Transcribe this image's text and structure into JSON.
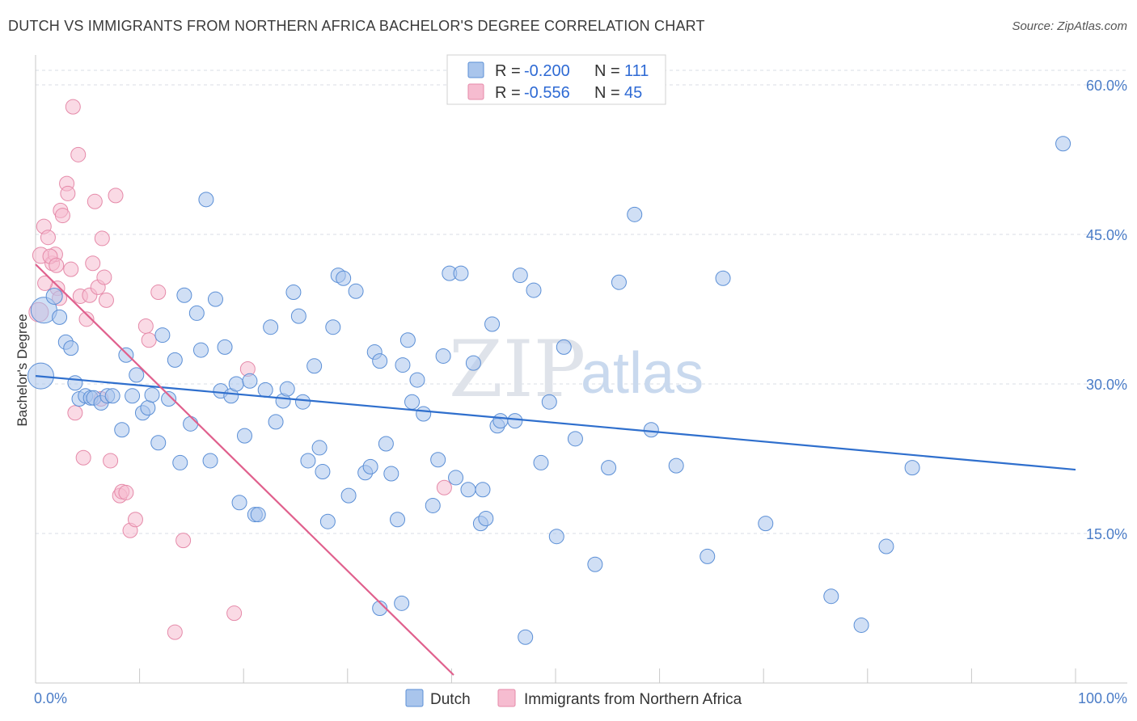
{
  "header": {
    "title": "DUTCH VS IMMIGRANTS FROM NORTHERN AFRICA BACHELOR'S DEGREE CORRELATION CHART",
    "source": "Source: ZipAtlas.com"
  },
  "watermark": {
    "zip": "ZIP",
    "atlas": "atlas"
  },
  "legend_box": {
    "rows": [
      {
        "r_label": "R =",
        "r_value": "-0.200",
        "n_label": "N =",
        "n_value": "111"
      },
      {
        "r_label": "R =",
        "r_value": "-0.556",
        "n_label": "N =",
        "n_value": "45"
      }
    ]
  },
  "bottom_legend": {
    "dutch": "Dutch",
    "immigrants": "Immigrants from Northern Africa"
  },
  "colors": {
    "dutch_fill": "#a9c5ec",
    "dutch_stroke": "#5b8fd6",
    "dutch_line": "#2f6fcd",
    "imm_fill": "#f6bcd0",
    "imm_stroke": "#e58aa9",
    "imm_line": "#e0608d",
    "grid": "#d8dde5",
    "axis_text": "#4a7cc7"
  },
  "chart_data": {
    "type": "scatter",
    "title": "DUTCH VS IMMIGRANTS FROM NORTHERN AFRICA BACHELOR'S DEGREE CORRELATION CHART",
    "xlabel": "",
    "ylabel": "Bachelor's Degree",
    "xlim": [
      0,
      100
    ],
    "ylim": [
      0,
      63
    ],
    "x_tick_labels": [
      "0.0%",
      "100.0%"
    ],
    "y_ticks": [
      15,
      30,
      45,
      60
    ],
    "y_tick_labels": [
      "15.0%",
      "30.0%",
      "45.0%",
      "60.0%"
    ],
    "grid": true,
    "legend": "top-center",
    "series": [
      {
        "name": "Dutch",
        "r": -0.2,
        "n": 111,
        "trend": {
          "x": [
            0,
            100
          ],
          "y": [
            30.8,
            21.4
          ]
        },
        "points": [
          [
            0.5,
            30.8,
            16
          ],
          [
            0.8,
            37.4,
            16
          ],
          [
            1.8,
            38.8,
            10
          ],
          [
            2.3,
            36.7,
            9
          ],
          [
            2.9,
            34.2,
            9
          ],
          [
            3.4,
            33.6,
            9
          ],
          [
            3.8,
            30.1,
            9
          ],
          [
            4.2,
            28.5,
            9
          ],
          [
            4.8,
            28.8,
            9
          ],
          [
            5.3,
            28.6,
            9
          ],
          [
            5.6,
            28.6,
            9
          ],
          [
            6.3,
            28.1,
            9
          ],
          [
            6.9,
            28.8,
            9
          ],
          [
            7.4,
            28.8,
            9
          ],
          [
            8.3,
            25.4,
            9
          ],
          [
            8.7,
            32.9,
            9
          ],
          [
            9.3,
            28.8,
            9
          ],
          [
            9.7,
            30.9,
            9
          ],
          [
            10.3,
            27.1,
            9
          ],
          [
            10.8,
            27.6,
            9
          ],
          [
            11.2,
            28.9,
            9
          ],
          [
            11.8,
            24.1,
            9
          ],
          [
            12.2,
            34.9,
            9
          ],
          [
            12.8,
            28.5,
            9
          ],
          [
            13.4,
            32.4,
            9
          ],
          [
            13.9,
            22.1,
            9
          ],
          [
            14.3,
            38.9,
            9
          ],
          [
            14.9,
            26.0,
            9
          ],
          [
            15.5,
            37.1,
            9
          ],
          [
            15.9,
            33.4,
            9
          ],
          [
            16.4,
            48.5,
            9
          ],
          [
            16.8,
            22.3,
            9
          ],
          [
            17.3,
            38.5,
            9
          ],
          [
            17.8,
            29.3,
            9
          ],
          [
            18.2,
            33.7,
            9
          ],
          [
            18.8,
            28.8,
            9
          ],
          [
            19.3,
            30.0,
            9
          ],
          [
            19.6,
            18.1,
            9
          ],
          [
            20.1,
            24.8,
            9
          ],
          [
            20.6,
            30.3,
            9
          ],
          [
            21.1,
            16.9,
            9
          ],
          [
            21.4,
            16.9,
            9
          ],
          [
            22.1,
            29.4,
            9
          ],
          [
            22.6,
            35.7,
            9
          ],
          [
            23.1,
            26.2,
            9
          ],
          [
            23.8,
            28.3,
            9
          ],
          [
            24.2,
            29.5,
            9
          ],
          [
            24.8,
            39.2,
            9
          ],
          [
            25.3,
            36.8,
            9
          ],
          [
            25.7,
            28.2,
            9
          ],
          [
            26.2,
            22.3,
            9
          ],
          [
            26.8,
            31.8,
            9
          ],
          [
            27.3,
            23.6,
            9
          ],
          [
            27.6,
            21.2,
            9
          ],
          [
            28.1,
            16.2,
            9
          ],
          [
            28.6,
            35.7,
            9
          ],
          [
            29.1,
            40.9,
            9
          ],
          [
            29.6,
            40.6,
            9
          ],
          [
            30.1,
            18.8,
            9
          ],
          [
            30.8,
            39.3,
            9
          ],
          [
            31.7,
            21.1,
            9
          ],
          [
            32.2,
            21.7,
            9
          ],
          [
            32.6,
            33.2,
            9
          ],
          [
            33.1,
            32.3,
            9
          ],
          [
            33.7,
            24.0,
            9
          ],
          [
            34.2,
            21.0,
            9
          ],
          [
            34.8,
            16.4,
            9
          ],
          [
            35.3,
            31.9,
            9
          ],
          [
            35.8,
            34.4,
            9
          ],
          [
            36.2,
            28.2,
            9
          ],
          [
            36.7,
            30.4,
            9
          ],
          [
            37.3,
            27.0,
            9
          ],
          [
            38.2,
            17.8,
            9
          ],
          [
            38.7,
            22.4,
            9
          ],
          [
            39.2,
            32.8,
            9
          ],
          [
            39.8,
            41.1,
            9
          ],
          [
            40.4,
            20.6,
            9
          ],
          [
            40.9,
            41.1,
            9
          ],
          [
            41.6,
            19.4,
            9
          ],
          [
            42.1,
            32.1,
            9
          ],
          [
            42.8,
            16.0,
            9
          ],
          [
            43.3,
            16.5,
            9
          ],
          [
            43.9,
            36.0,
            9
          ],
          [
            44.4,
            25.8,
            9
          ],
          [
            44.7,
            26.3,
            9
          ],
          [
            46.1,
            26.3,
            9
          ],
          [
            46.6,
            40.9,
            9
          ],
          [
            47.9,
            39.4,
            9
          ],
          [
            48.6,
            22.1,
            9
          ],
          [
            49.4,
            28.2,
            9
          ],
          [
            50.1,
            14.7,
            9
          ],
          [
            50.8,
            33.7,
            9
          ],
          [
            51.9,
            24.5,
            9
          ],
          [
            53.8,
            11.9,
            9
          ],
          [
            55.1,
            21.6,
            9
          ],
          [
            56.1,
            40.2,
            9
          ],
          [
            57.6,
            47.0,
            9
          ],
          [
            59.2,
            25.4,
            9
          ],
          [
            61.6,
            21.8,
            9
          ],
          [
            64.6,
            12.7,
            9
          ],
          [
            66.1,
            40.6,
            9
          ],
          [
            70.2,
            16.0,
            9
          ],
          [
            76.5,
            8.7,
            9
          ],
          [
            79.4,
            5.8,
            9
          ],
          [
            81.8,
            13.7,
            9
          ],
          [
            84.3,
            21.6,
            9
          ],
          [
            98.8,
            54.1,
            9
          ],
          [
            35.2,
            8.0,
            9
          ],
          [
            33.1,
            7.5,
            9
          ],
          [
            47.1,
            4.6,
            9
          ],
          [
            43.0,
            19.4,
            9
          ]
        ]
      },
      {
        "name": "Immigrants from Northern Africa",
        "r": -0.556,
        "n": 45,
        "trend": {
          "x": [
            0,
            40.2
          ],
          "y": [
            42.0,
            0.8
          ]
        },
        "points": [
          [
            0.3,
            37.2,
            12
          ],
          [
            0.5,
            42.9,
            10
          ],
          [
            0.8,
            45.8,
            9
          ],
          [
            1.2,
            44.7,
            9
          ],
          [
            1.6,
            42.1,
            9
          ],
          [
            1.9,
            43.0,
            9
          ],
          [
            2.1,
            39.6,
            9
          ],
          [
            2.3,
            38.6,
            9
          ],
          [
            2.4,
            47.4,
            9
          ],
          [
            2.6,
            46.9,
            9
          ],
          [
            3.0,
            50.1,
            9
          ],
          [
            3.1,
            49.1,
            9
          ],
          [
            3.4,
            41.5,
            9
          ],
          [
            3.6,
            57.8,
            9
          ],
          [
            3.8,
            27.1,
            9
          ],
          [
            4.1,
            53.0,
            9
          ],
          [
            4.3,
            38.8,
            9
          ],
          [
            4.6,
            22.6,
            9
          ],
          [
            4.9,
            36.5,
            9
          ],
          [
            5.2,
            38.9,
            9
          ],
          [
            5.5,
            42.1,
            9
          ],
          [
            5.7,
            48.3,
            9
          ],
          [
            6.0,
            39.7,
            9
          ],
          [
            6.3,
            28.5,
            9
          ],
          [
            6.4,
            44.6,
            9
          ],
          [
            6.6,
            40.7,
            9
          ],
          [
            6.8,
            38.4,
            9
          ],
          [
            7.2,
            22.3,
            9
          ],
          [
            7.7,
            48.9,
            9
          ],
          [
            8.1,
            18.8,
            9
          ],
          [
            8.3,
            19.2,
            9
          ],
          [
            8.7,
            19.1,
            9
          ],
          [
            9.1,
            15.3,
            9
          ],
          [
            9.6,
            16.4,
            9
          ],
          [
            10.6,
            35.8,
            9
          ],
          [
            10.9,
            34.4,
            9
          ],
          [
            11.8,
            39.2,
            9
          ],
          [
            13.4,
            5.1,
            9
          ],
          [
            14.2,
            14.3,
            9
          ],
          [
            19.1,
            7.0,
            9
          ],
          [
            20.4,
            31.5,
            9
          ],
          [
            39.3,
            19.6,
            9
          ],
          [
            1.4,
            42.8,
            9
          ],
          [
            2.0,
            41.9,
            9
          ],
          [
            0.9,
            40.1,
            9
          ]
        ]
      }
    ]
  }
}
